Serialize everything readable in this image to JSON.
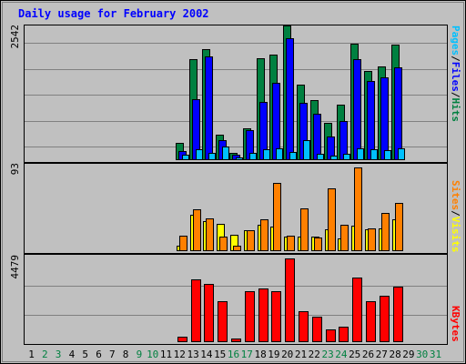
{
  "title": "Daily usage for February 2002",
  "colors": {
    "background": "#c0c0c0",
    "title": "#0000ff",
    "hits": "#008040",
    "files": "#0000ff",
    "pages": "#00c0ff",
    "visits": "#ffff00",
    "sites": "#ff8000",
    "kbytes": "#ff0000",
    "weekend_label": "#008040",
    "weekday_label": "#000000"
  },
  "legend_top": {
    "pages": "Pages",
    "files": "Files",
    "hits": "Hits",
    "sep": "/"
  },
  "legend_mid": {
    "sites": "Sites",
    "visits": "Visits",
    "sep": "/"
  },
  "legend_bottom": {
    "kbytes": "KBytes"
  },
  "max_labels": {
    "top": "2542",
    "mid": "93",
    "bottom": "4479"
  },
  "chart_data": {
    "type": "bar",
    "title": "Daily usage for February 2002",
    "x": [
      "1",
      "2",
      "3",
      "4",
      "5",
      "6",
      "7",
      "8",
      "9",
      "10",
      "11",
      "12",
      "13",
      "14",
      "15",
      "16",
      "17",
      "18",
      "19",
      "20",
      "21",
      "22",
      "23",
      "24",
      "25",
      "26",
      "27",
      "28",
      "29",
      "30",
      "31"
    ],
    "weekend_days": [
      2,
      3,
      9,
      10,
      16,
      17,
      23,
      24,
      30,
      31
    ],
    "panels": [
      {
        "name": "top",
        "ylim": [
          0,
          2542
        ],
        "series": [
          {
            "name": "Hits",
            "values": [
              0,
              0,
              0,
              0,
              0,
              0,
              0,
              0,
              0,
              0,
              0,
              330,
              1900,
              2100,
              480,
              140,
              600,
              1920,
              2000,
              2542,
              1420,
              1140,
              700,
              1050,
              2200,
              1680,
              1770,
              2180,
              0,
              0,
              0
            ]
          },
          {
            "name": "Files",
            "values": [
              0,
              0,
              0,
              0,
              0,
              0,
              0,
              0,
              0,
              0,
              0,
              170,
              1150,
              1950,
              380,
              100,
              560,
              1100,
              1460,
              2300,
              1090,
              880,
              440,
              740,
              1900,
              1500,
              1560,
              1760,
              0,
              0,
              0
            ]
          },
          {
            "name": "Pages",
            "values": [
              0,
              0,
              0,
              0,
              0,
              0,
              0,
              0,
              0,
              0,
              0,
              110,
              200,
              130,
              260,
              60,
              130,
              200,
              220,
              160,
              380,
              120,
              80,
              120,
              220,
              200,
              190,
              220,
              0,
              0,
              0
            ]
          }
        ]
      },
      {
        "name": "mid",
        "ylim": [
          0,
          93
        ],
        "series": [
          {
            "name": "Visits",
            "values": [
              0,
              0,
              0,
              0,
              0,
              0,
              0,
              0,
              0,
              0,
              0,
              6,
              40,
              33,
              30,
              18,
              23,
              29,
              27,
              16,
              16,
              16,
              24,
              14,
              28,
              24,
              25,
              35,
              0,
              0,
              0
            ]
          },
          {
            "name": "Sites",
            "values": [
              0,
              0,
              0,
              0,
              0,
              0,
              0,
              0,
              0,
              0,
              0,
              17,
              46,
              36,
              16,
              6,
              23,
              35,
              76,
              17,
              48,
              15,
              70,
              29,
              93,
              25,
              42,
              54,
              0,
              0,
              0
            ]
          }
        ]
      },
      {
        "name": "bottom",
        "ylim": [
          0,
          4479
        ],
        "series": [
          {
            "name": "KBytes",
            "values": [
              0,
              0,
              0,
              0,
              0,
              0,
              0,
              0,
              0,
              0,
              0,
              310,
              3380,
              3100,
              2170,
              190,
              2740,
              2880,
              2740,
              4479,
              1640,
              1360,
              660,
              820,
              3450,
              2190,
              2470,
              2980,
              0,
              0,
              0
            ]
          }
        ]
      }
    ]
  }
}
